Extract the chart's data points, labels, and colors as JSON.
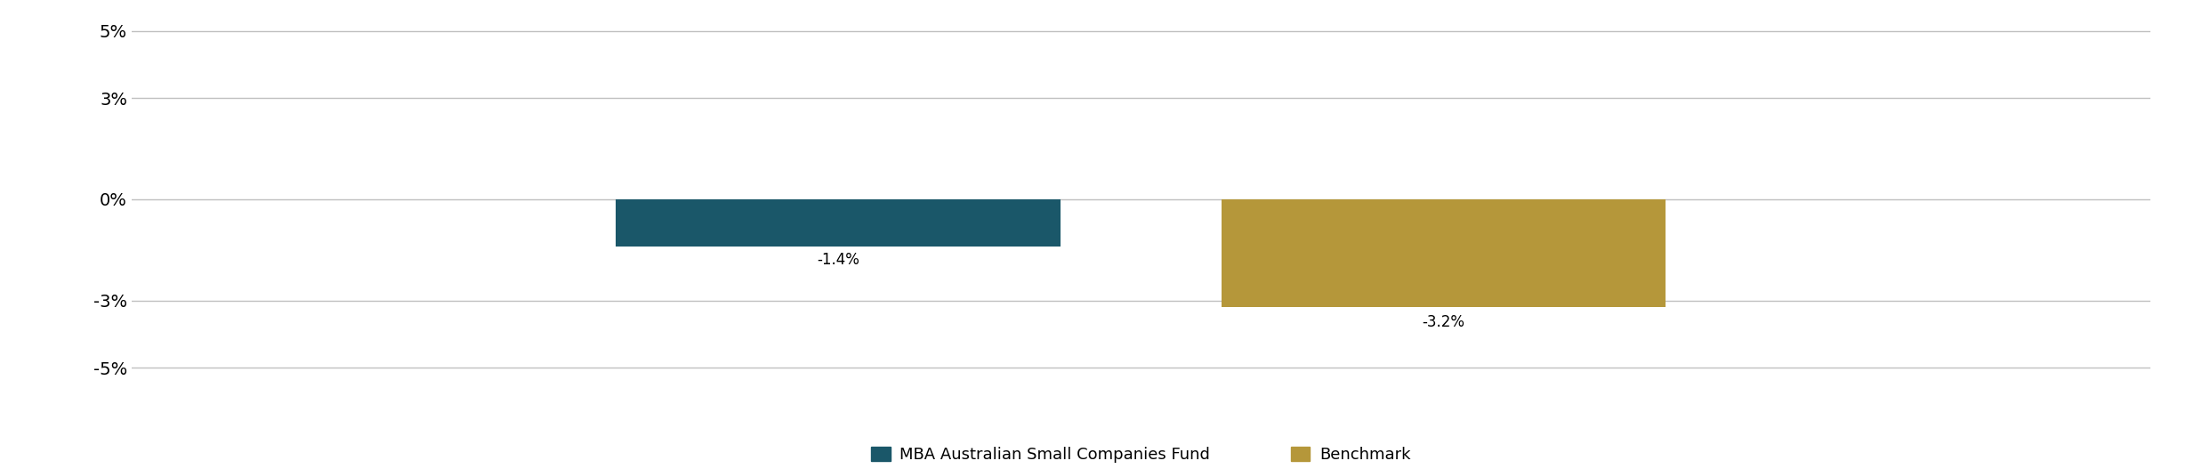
{
  "categories": [
    "MBA Australian Small Companies Fund",
    "Benchmark"
  ],
  "values": [
    -1.4,
    -3.2
  ],
  "bar_colors": [
    "#1a5769",
    "#b5973a"
  ],
  "bar_positions": [
    0.35,
    0.65
  ],
  "bar_width": 0.22,
  "value_labels": [
    "-1.4%",
    "-3.2%"
  ],
  "ylim": [
    -5.5,
    5.5
  ],
  "yticks": [
    -5,
    -3,
    0,
    3,
    5
  ],
  "ytick_labels": [
    "-5%",
    "-3%",
    "0%",
    "3%",
    "5%"
  ],
  "grid_color": "#c0c0c0",
  "background_color": "#ffffff",
  "legend_labels": [
    "MBA Australian Small Companies Fund",
    "Benchmark"
  ],
  "label_fontsize": 13,
  "tick_fontsize": 14,
  "value_label_fontsize": 12
}
